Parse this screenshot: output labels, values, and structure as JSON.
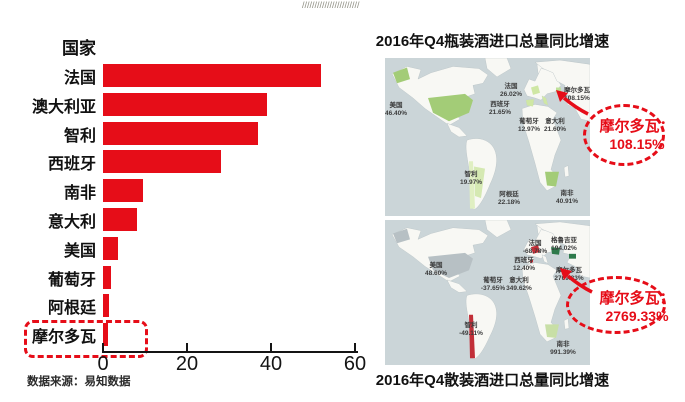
{
  "decor_slashes": "///////////////////////",
  "chart_data": [
    {
      "type": "bar",
      "orientation": "horizontal",
      "header_label": "国家",
      "categories": [
        "法国",
        "澳大利亚",
        "智利",
        "西班牙",
        "南非",
        "意大利",
        "美国",
        "葡萄牙",
        "阿根廷",
        "摩尔多瓦"
      ],
      "values": [
        52,
        39,
        37,
        28,
        9.5,
        8,
        3.5,
        2,
        1.5,
        1.2
      ],
      "xlim": [
        0,
        60
      ],
      "xticks": [
        "0",
        "20",
        "40",
        "60"
      ],
      "bar_color": "#e60d18",
      "highlight_category": "摩尔多瓦",
      "source": "数据来源：易知数据"
    },
    {
      "type": "map",
      "title": "2016年Q4瓶装酒进口总量同比增速",
      "labels": [
        {
          "name": "美国",
          "value": "46.40%"
        },
        {
          "name": "法国",
          "value": "26.02%"
        },
        {
          "name": "西班牙",
          "value": "21.65%"
        },
        {
          "name": "葡萄牙",
          "value": "12.97%"
        },
        {
          "name": "意大利",
          "value": "21.60%"
        },
        {
          "name": "摩尔多瓦",
          "value": "108.15%"
        },
        {
          "name": "智利",
          "value": "19.97%"
        },
        {
          "name": "阿根廷",
          "value": "22.18%"
        },
        {
          "name": "南非",
          "value": "40.91%"
        }
      ],
      "callout_label": "摩尔多瓦：",
      "callout_value": "108.15%"
    },
    {
      "type": "map",
      "title": "2016年Q4散装酒进口总量同比增速",
      "labels": [
        {
          "name": "美国",
          "value": "48.60%"
        },
        {
          "name": "法国",
          "value": "-68.78%"
        },
        {
          "name": "格鲁吉亚",
          "value": "194.02%"
        },
        {
          "name": "西班牙",
          "value": "12.40%"
        },
        {
          "name": "葡萄牙",
          "value": "-37.65%"
        },
        {
          "name": "意大利",
          "value": "349.62%"
        },
        {
          "name": "摩尔多瓦",
          "value": "2769.33%"
        },
        {
          "name": "智利",
          "value": "-49.11%"
        },
        {
          "name": "南非",
          "value": "991.39%"
        }
      ],
      "callout_label": "摩尔多瓦：",
      "callout_value": "2769.33%"
    }
  ],
  "colors": {
    "accent_red": "#e60d18",
    "map_sea": "#cbd5d8",
    "map_land": "#f8f8f4",
    "green_dark": "#a3cc77",
    "green_light": "#cfe7a4",
    "gray_country": "#b7c0c4",
    "red_country": "#c22f38",
    "dark_green_country": "#2e7a4b"
  }
}
